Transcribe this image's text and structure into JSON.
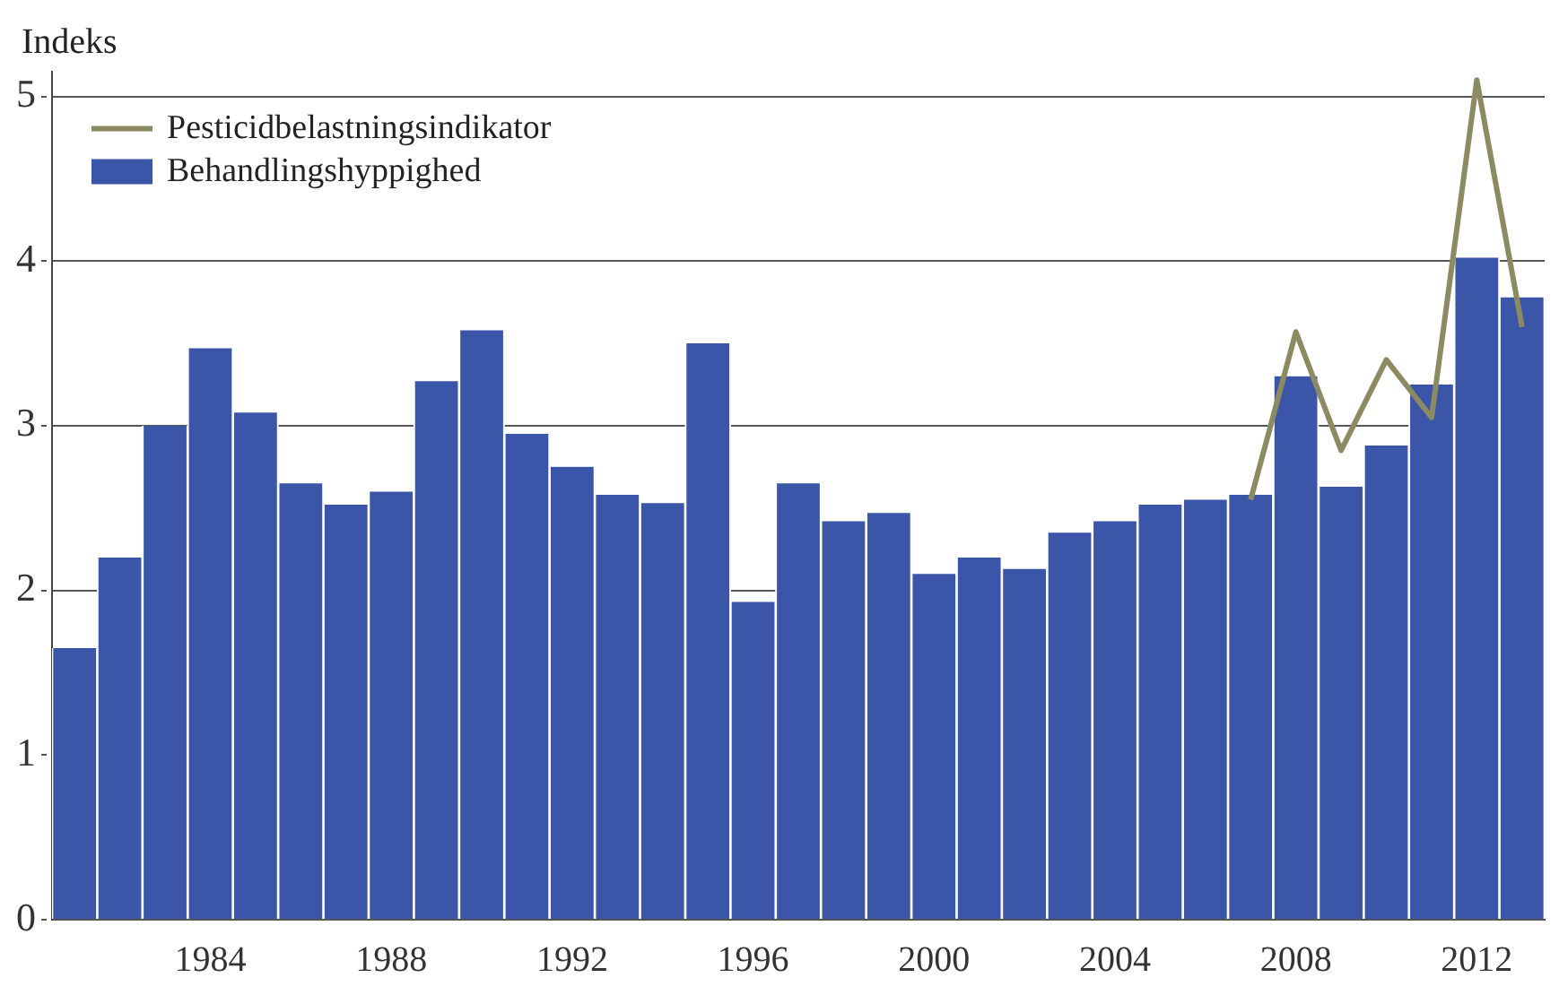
{
  "chart_data": {
    "type": "bar",
    "ylabel": "Indeks",
    "categories": [
      null,
      null,
      null,
      "1984",
      null,
      null,
      null,
      "1988",
      null,
      null,
      null,
      "1992",
      null,
      null,
      null,
      "1996",
      null,
      null,
      null,
      "2000",
      null,
      null,
      null,
      "2004",
      null,
      null,
      null,
      "2008",
      null,
      null,
      null,
      "2012",
      null
    ],
    "series": [
      {
        "name": "Pesticidbelastningsindikator",
        "type": "line",
        "color": "#8c8a62",
        "values": [
          null,
          null,
          null,
          null,
          null,
          null,
          null,
          null,
          null,
          null,
          null,
          null,
          null,
          null,
          null,
          null,
          null,
          null,
          null,
          null,
          null,
          null,
          null,
          null,
          null,
          null,
          2.55,
          3.57,
          2.85,
          3.4,
          3.05,
          5.1,
          3.6
        ]
      },
      {
        "name": "Behandlingshyppighed",
        "color": "#3b56a8",
        "values": [
          1.65,
          2.2,
          3.0,
          3.47,
          3.08,
          2.65,
          2.52,
          2.6,
          3.27,
          3.58,
          2.95,
          2.75,
          2.58,
          2.53,
          3.5,
          1.93,
          2.65,
          2.42,
          2.47,
          2.1,
          2.2,
          2.13,
          2.35,
          2.42,
          2.52,
          2.55,
          2.58,
          3.3,
          2.63,
          2.88,
          3.25,
          4.02,
          3.78
        ]
      }
    ],
    "ylim": [
      0,
      5.15
    ],
    "yticks": [
      0,
      1,
      2,
      3,
      4,
      5
    ],
    "grid": "y",
    "legend": "top left",
    "marker": "none",
    "line_style": "solid"
  }
}
